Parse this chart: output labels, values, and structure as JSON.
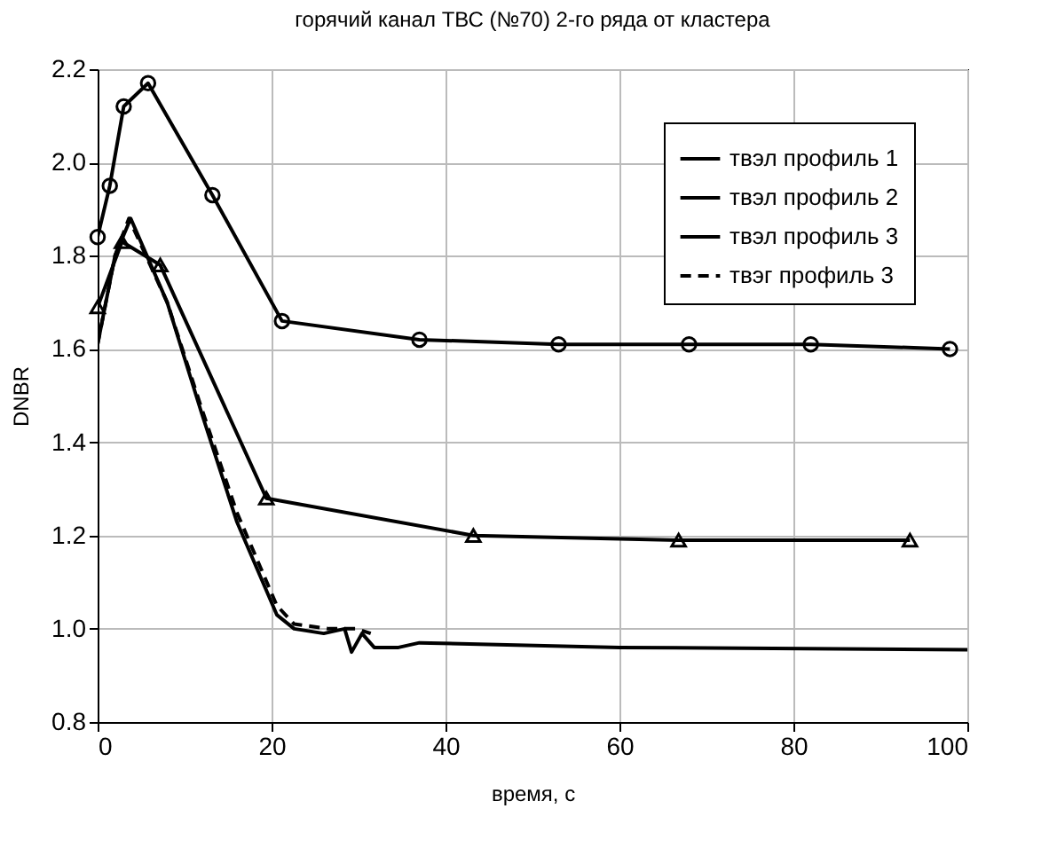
{
  "chart_data": {
    "type": "line",
    "title": "горячий канал ТВС (№70) 2-го ряда от кластера",
    "xlabel": "время, с",
    "ylabel": "DNBR",
    "xlim": [
      0,
      100
    ],
    "xticks": [
      0,
      20,
      40,
      60,
      80,
      100
    ],
    "ylim": [
      0.8,
      2.2
    ],
    "yticks": [
      0.8,
      {
        "value": 1.0,
        "label": "1.0"
      },
      1.2,
      1.4,
      1.6,
      1.8,
      {
        "value": 2.0,
        "label": "2.0"
      },
      2.2
    ],
    "grid": true,
    "legend": "top right",
    "series": [
      {
        "name": "твэл профиль 1",
        "color": "#000000",
        "marker": "circle",
        "line_style": "solid",
        "x": [
          0,
          1.4,
          3,
          5.8,
          13.2,
          21.2,
          37,
          53,
          68,
          82,
          98
        ],
        "values": [
          1.84,
          1.95,
          2.12,
          2.17,
          1.93,
          1.66,
          1.62,
          1.61,
          1.61,
          1.61,
          1.6
        ]
      },
      {
        "name": "твэл профиль 2",
        "color": "#000000",
        "marker": "triangle",
        "line_style": "solid",
        "x": [
          0,
          2.8,
          7.2,
          19.4,
          43.2,
          66.8,
          93.4
        ],
        "values": [
          1.69,
          1.83,
          1.78,
          1.28,
          1.2,
          1.19,
          1.19
        ]
      },
      {
        "name": "твэл профиль 3",
        "color": "#000000",
        "marker": "none",
        "line_style": "solid",
        "x": [
          0,
          2,
          3.8,
          8,
          12,
          16,
          20.6,
          22.6,
          26,
          28.4,
          29.2,
          30.4,
          31.8,
          34.6,
          37,
          60,
          100
        ],
        "values": [
          1.61,
          1.8,
          1.88,
          1.7,
          1.46,
          1.23,
          1.03,
          1.0,
          0.99,
          1.0,
          0.95,
          0.99,
          0.96,
          0.96,
          0.97,
          0.96,
          0.955
        ]
      },
      {
        "name": "твэг профиль 3",
        "color": "#000000",
        "marker": "none",
        "line_style": "dashed",
        "x": [
          0,
          2,
          3.6,
          8,
          12,
          16,
          20.6,
          22.6,
          26.6,
          29.8,
          31.4
        ],
        "values": [
          1.61,
          1.8,
          1.88,
          1.7,
          1.47,
          1.25,
          1.05,
          1.01,
          1.0,
          1.0,
          0.99
        ]
      }
    ]
  }
}
